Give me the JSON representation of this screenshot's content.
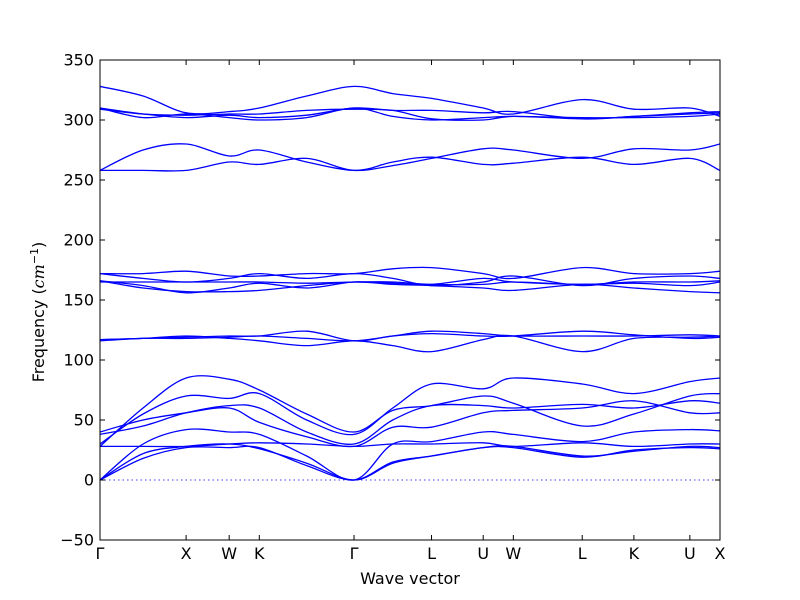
{
  "chart_data": {
    "type": "line",
    "xlabel": "Wave vector",
    "ylabel": "Frequency (",
    "ylabel_math_base": "cm",
    "ylabel_math_exp": "−1",
    "ylabel_close": ")",
    "ylim": [
      -50,
      350
    ],
    "yticks": [
      -50,
      0,
      50,
      100,
      150,
      200,
      250,
      300,
      350
    ],
    "ytick_labels": [
      "−50",
      "0",
      "50",
      "100",
      "150",
      "200",
      "250",
      "300",
      "350"
    ],
    "xlim": [
      0,
      7.2
    ],
    "kpoints": [
      {
        "label": "Γ",
        "x": 0.0
      },
      {
        "label": "X",
        "x": 1.0
      },
      {
        "label": "W",
        "x": 1.5
      },
      {
        "label": "K",
        "x": 1.85
      },
      {
        "label": "Γ",
        "x": 2.95
      },
      {
        "label": "L",
        "x": 3.85
      },
      {
        "label": "U",
        "x": 4.45
      },
      {
        "label": "W",
        "x": 4.8
      },
      {
        "label": "L",
        "x": 5.6
      },
      {
        "label": "K",
        "x": 6.2
      },
      {
        "label": "U",
        "x": 6.85
      },
      {
        "label": "X",
        "x": 7.2
      }
    ],
    "band_color": "#0000ff",
    "zero_line_color": "#0000ff",
    "grid": false,
    "series": [
      {
        "x": [
          0,
          0.5,
          1,
          1.5,
          1.85,
          2.4,
          2.95,
          3.4,
          3.85,
          4.45,
          4.8,
          5.6,
          6.2,
          6.85,
          7.2
        ],
        "y": [
          0,
          22,
          28,
          30,
          26,
          14,
          0,
          14,
          20,
          27,
          28,
          20,
          24,
          28,
          27
        ]
      },
      {
        "x": [
          0,
          0.5,
          1,
          1.5,
          1.85,
          2.4,
          2.95,
          3.4,
          3.85,
          4.45,
          4.8,
          5.6,
          6.2,
          6.85,
          7.2
        ],
        "y": [
          0,
          18,
          27,
          27,
          27,
          12,
          0,
          15,
          20,
          27,
          27,
          19,
          25,
          27,
          26
        ]
      },
      {
        "x": [
          0,
          0.5,
          1,
          1.5,
          1.85,
          2.4,
          2.95,
          3.4,
          3.85,
          4.45,
          4.8,
          5.6,
          6.2,
          6.85,
          7.2
        ],
        "y": [
          0,
          30,
          42,
          40,
          38,
          20,
          0,
          30,
          32,
          40,
          38,
          32,
          40,
          42,
          41
        ]
      },
      {
        "x": [
          0,
          0.5,
          1,
          1.5,
          1.85,
          2.4,
          2.95,
          3.4,
          3.85,
          4.45,
          4.8,
          5.6,
          6.2,
          6.85,
          7.2
        ],
        "y": [
          28,
          60,
          85,
          84,
          75,
          55,
          40,
          58,
          62,
          70,
          64,
          45,
          55,
          70,
          72
        ]
      },
      {
        "x": [
          0,
          0.5,
          1,
          1.5,
          1.85,
          2.4,
          2.95,
          3.4,
          3.85,
          4.45,
          4.8,
          5.6,
          6.2,
          6.85,
          7.2
        ],
        "y": [
          30,
          55,
          70,
          68,
          72,
          50,
          38,
          60,
          80,
          76,
          85,
          80,
          72,
          82,
          85
        ]
      },
      {
        "x": [
          0,
          0.5,
          1,
          1.5,
          1.85,
          2.4,
          2.95,
          3.4,
          3.85,
          4.45,
          4.8,
          5.6,
          6.2,
          6.85,
          7.2
        ],
        "y": [
          38,
          45,
          56,
          62,
          60,
          40,
          30,
          50,
          62,
          62,
          60,
          63,
          60,
          66,
          64
        ]
      },
      {
        "x": [
          0,
          0.5,
          1,
          1.5,
          1.85,
          2.4,
          2.95,
          3.4,
          3.85,
          4.45,
          4.8,
          5.6,
          6.2,
          6.85,
          7.2
        ],
        "y": [
          40,
          50,
          56,
          60,
          48,
          36,
          28,
          44,
          44,
          56,
          58,
          60,
          66,
          56,
          56
        ]
      },
      {
        "x": [
          0,
          0.5,
          1,
          1.5,
          1.85,
          2.4,
          2.95,
          3.4,
          3.85,
          4.45,
          4.8,
          5.6,
          6.2,
          6.85,
          7.2
        ],
        "y": [
          28,
          28,
          28,
          30,
          31,
          30,
          28,
          30,
          30,
          31,
          28,
          31,
          28,
          30,
          30
        ]
      },
      {
        "x": [
          0,
          0.5,
          1,
          1.5,
          1.85,
          2.4,
          2.95,
          3.4,
          3.85,
          4.45,
          4.8,
          5.6,
          6.2,
          6.85,
          7.2
        ],
        "y": [
          116,
          118,
          118,
          119,
          120,
          118,
          116,
          120,
          124,
          122,
          120,
          120,
          120,
          121,
          120
        ]
      },
      {
        "x": [
          0,
          0.5,
          1,
          1.5,
          1.85,
          2.4,
          2.95,
          3.4,
          3.85,
          4.45,
          4.8,
          5.6,
          6.2,
          6.85,
          7.2
        ],
        "y": [
          117,
          118,
          119,
          120,
          120,
          124,
          116,
          120,
          122,
          120,
          120,
          124,
          121,
          118,
          119
        ]
      },
      {
        "x": [
          0,
          0.5,
          1,
          1.5,
          1.85,
          2.4,
          2.95,
          3.4,
          3.85,
          4.45,
          4.8,
          5.6,
          6.2,
          6.85,
          7.2
        ],
        "y": [
          117,
          118,
          120,
          118,
          116,
          112,
          116,
          112,
          107,
          117,
          120,
          107,
          118,
          119,
          120
        ]
      },
      {
        "x": [
          0,
          0.5,
          1,
          1.5,
          1.85,
          2.4,
          2.95,
          3.4,
          3.85,
          4.45,
          4.8,
          5.6,
          6.2,
          6.85,
          7.2
        ],
        "y": [
          172,
          172,
          174,
          170,
          170,
          172,
          172,
          176,
          177,
          172,
          168,
          177,
          172,
          172,
          174
        ]
      },
      {
        "x": [
          0,
          0.5,
          1,
          1.5,
          1.85,
          2.4,
          2.95,
          3.4,
          3.85,
          4.45,
          4.8,
          5.6,
          6.2,
          6.85,
          7.2
        ],
        "y": [
          172,
          168,
          165,
          168,
          172,
          168,
          172,
          168,
          162,
          165,
          170,
          162,
          168,
          170,
          168
        ]
      },
      {
        "x": [
          0,
          0.5,
          1,
          1.5,
          1.85,
          2.4,
          2.95,
          3.4,
          3.85,
          4.45,
          4.8,
          5.6,
          6.2,
          6.85,
          7.2
        ],
        "y": [
          166,
          162,
          156,
          160,
          164,
          160,
          165,
          163,
          162,
          160,
          158,
          163,
          160,
          157,
          156
        ]
      },
      {
        "x": [
          0,
          0.5,
          1,
          1.5,
          1.85,
          2.4,
          2.95,
          3.4,
          3.85,
          4.45,
          4.8,
          5.6,
          6.2,
          6.85,
          7.2
        ],
        "y": [
          166,
          160,
          157,
          157,
          158,
          162,
          165,
          164,
          163,
          168,
          165,
          163,
          164,
          162,
          165
        ]
      },
      {
        "x": [
          0,
          0.5,
          1,
          1.5,
          1.85,
          2.4,
          2.95,
          3.4,
          3.85,
          4.45,
          4.8,
          5.6,
          6.2,
          6.85,
          7.2
        ],
        "y": [
          165,
          165,
          165,
          165,
          165,
          164,
          165,
          165,
          163,
          163,
          165,
          163,
          165,
          165,
          166
        ]
      },
      {
        "x": [
          0,
          0.5,
          1,
          1.5,
          1.85,
          2.4,
          2.95,
          3.4,
          3.85,
          4.45,
          4.8,
          5.6,
          6.2,
          6.85,
          7.2
        ],
        "y": [
          258,
          275,
          280,
          270,
          275,
          265,
          258,
          262,
          268,
          276,
          275,
          268,
          276,
          275,
          280
        ]
      },
      {
        "x": [
          0,
          0.5,
          1,
          1.5,
          1.85,
          2.4,
          2.95,
          3.4,
          3.85,
          4.45,
          4.8,
          5.6,
          6.2,
          6.85,
          7.2
        ],
        "y": [
          258,
          258,
          258,
          265,
          263,
          268,
          258,
          265,
          269,
          263,
          264,
          269,
          263,
          268,
          258
        ]
      },
      {
        "x": [
          0,
          0.5,
          1,
          1.5,
          1.85,
          2.4,
          2.95,
          3.4,
          3.85,
          4.45,
          4.8,
          5.6,
          6.2,
          6.85,
          7.2
        ],
        "y": [
          328,
          320,
          306,
          307,
          310,
          320,
          328,
          322,
          318,
          310,
          305,
          317,
          309,
          310,
          303
        ]
      },
      {
        "x": [
          0,
          0.5,
          1,
          1.5,
          1.85,
          2.4,
          2.95,
          3.4,
          3.85,
          4.45,
          4.8,
          5.6,
          6.2,
          6.85,
          7.2
        ],
        "y": [
          310,
          305,
          302,
          304,
          302,
          304,
          310,
          308,
          308,
          306,
          307,
          301,
          303,
          305,
          306
        ]
      },
      {
        "x": [
          0,
          0.5,
          1,
          1.5,
          1.85,
          2.4,
          2.95,
          3.4,
          3.85,
          4.45,
          4.8,
          5.6,
          6.2,
          6.85,
          7.2
        ],
        "y": [
          310,
          302,
          305,
          302,
          300,
          302,
          310,
          303,
          300,
          302,
          303,
          302,
          302,
          303,
          305
        ]
      },
      {
        "x": [
          0,
          0.5,
          1,
          1.5,
          1.85,
          2.4,
          2.95,
          3.4,
          3.85,
          4.45,
          4.8,
          5.6,
          6.2,
          6.85,
          7.2
        ],
        "y": [
          309,
          305,
          304,
          305,
          305,
          308,
          309,
          308,
          301,
          300,
          303,
          301,
          303,
          306,
          307
        ]
      }
    ]
  }
}
